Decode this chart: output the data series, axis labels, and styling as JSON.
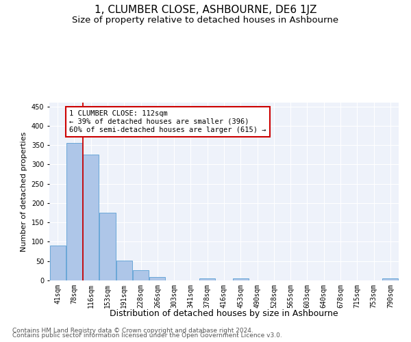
{
  "title": "1, CLUMBER CLOSE, ASHBOURNE, DE6 1JZ",
  "subtitle": "Size of property relative to detached houses in Ashbourne",
  "xlabel": "Distribution of detached houses by size in Ashbourne",
  "ylabel": "Number of detached properties",
  "bar_values": [
    90,
    355,
    325,
    175,
    52,
    27,
    8,
    0,
    0,
    5,
    0,
    5,
    0,
    0,
    0,
    0,
    0,
    0,
    0,
    0,
    5
  ],
  "bar_labels": [
    "41sqm",
    "78sqm",
    "116sqm",
    "153sqm",
    "191sqm",
    "228sqm",
    "266sqm",
    "303sqm",
    "341sqm",
    "378sqm",
    "416sqm",
    "453sqm",
    "490sqm",
    "528sqm",
    "565sqm",
    "603sqm",
    "640sqm",
    "678sqm",
    "715sqm",
    "753sqm",
    "790sqm"
  ],
  "bar_color": "#aec6e8",
  "bar_edge_color": "#5a9fd4",
  "vline_index": 2,
  "vline_color": "#cc0000",
  "annotation_title": "1 CLUMBER CLOSE: 112sqm",
  "annotation_line1": "← 39% of detached houses are smaller (396)",
  "annotation_line2": "60% of semi-detached houses are larger (615) →",
  "annotation_box_color": "#ffffff",
  "annotation_box_edge": "#cc0000",
  "ylim": [
    0,
    460
  ],
  "yticks": [
    0,
    50,
    100,
    150,
    200,
    250,
    300,
    350,
    400,
    450
  ],
  "footer1": "Contains HM Land Registry data © Crown copyright and database right 2024.",
  "footer2": "Contains public sector information licensed under the Open Government Licence v3.0.",
  "bg_color": "#eef2fa",
  "grid_color": "#ffffff",
  "title_fontsize": 11,
  "subtitle_fontsize": 9.5,
  "xlabel_fontsize": 9,
  "ylabel_fontsize": 8,
  "tick_fontsize": 7,
  "footer_fontsize": 6.5,
  "ann_fontsize": 7.5
}
